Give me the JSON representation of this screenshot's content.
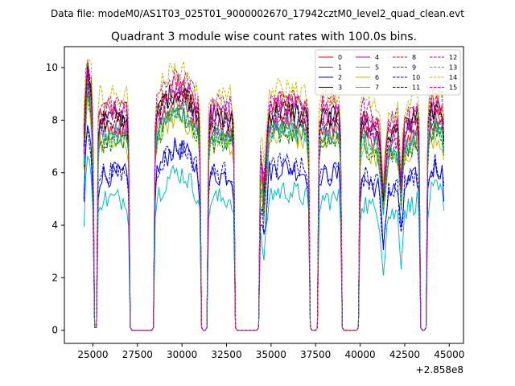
{
  "chart_data": {
    "type": "line",
    "suptitle": "Data file: modeM0/AS1T03_025T01_9000002670_17942cztM0_level2_quad_clean.evt",
    "title": "Quadrant 3 module wise count rates with 100.0s bins.",
    "xlabel": "",
    "ylabel": "",
    "x_offset_label": "+2.858e8",
    "xlim": [
      23400,
      45800
    ],
    "ylim": [
      -0.5,
      10.8
    ],
    "xticks": [
      25000,
      27500,
      30000,
      32500,
      35000,
      37500,
      40000,
      42500,
      45000
    ],
    "xtick_labels": [
      "25000",
      "27500",
      "30000",
      "32500",
      "35000",
      "37500",
      "40000",
      "42500",
      "45000"
    ],
    "yticks": [
      0,
      2,
      4,
      6,
      8,
      10
    ],
    "ytick_labels": [
      "0",
      "2",
      "4",
      "6",
      "8",
      "10"
    ],
    "legend_position": "top-right",
    "segments": [
      {
        "start": 24500,
        "end": 25000,
        "bump": 1.5
      },
      {
        "start": 25300,
        "end": 27000,
        "bump": 0
      },
      {
        "start": 28500,
        "end": 31000,
        "bump": 1.0
      },
      {
        "start": 31500,
        "end": 32900,
        "bump": 0
      },
      {
        "start": 34400,
        "end": 37100,
        "bump": 0.3
      },
      {
        "start": 37700,
        "end": 38900,
        "bump": 0
      },
      {
        "start": 40000,
        "end": 43300,
        "bump": -0.6
      },
      {
        "start": 43800,
        "end": 44700,
        "bump": 0.3
      }
    ],
    "series": [
      {
        "name": "0",
        "color": "#ff0000",
        "dash": "solid",
        "level": 7.7
      },
      {
        "name": "1",
        "color": "#008000",
        "dash": "solid",
        "level": 7.3
      },
      {
        "name": "2",
        "color": "#0000ff",
        "dash": "solid",
        "level": 5.9
      },
      {
        "name": "3",
        "color": "#000000",
        "dash": "solid",
        "level": 8.1
      },
      {
        "name": "4",
        "color": "#bf00bf",
        "dash": "solid",
        "level": 8.3
      },
      {
        "name": "5",
        "color": "#00bfbf",
        "dash": "solid",
        "level": 5.0
      },
      {
        "name": "6",
        "color": "#bfbf00",
        "dash": "solid",
        "level": 7.1
      },
      {
        "name": "7",
        "color": "#808080",
        "dash": "solid",
        "level": 7.5
      },
      {
        "name": "8",
        "color": "#ff0000",
        "dash": "dashed",
        "level": 8.4
      },
      {
        "name": "9",
        "color": "#008000",
        "dash": "dashed",
        "level": 7.2
      },
      {
        "name": "10",
        "color": "#0000ff",
        "dash": "dashed",
        "level": 6.0
      },
      {
        "name": "11",
        "color": "#000000",
        "dash": "dashed",
        "level": 8.0
      },
      {
        "name": "12",
        "color": "#bf00bf",
        "dash": "dashed",
        "level": 8.6
      },
      {
        "name": "13",
        "color": "#00bfbf",
        "dash": "dashed",
        "level": 7.4
      },
      {
        "name": "14",
        "color": "#bfbf00",
        "dash": "dashed",
        "level": 8.9
      },
      {
        "name": "15",
        "color": "#bf00bf",
        "dash": "dashed",
        "level": 7.8
      }
    ]
  }
}
